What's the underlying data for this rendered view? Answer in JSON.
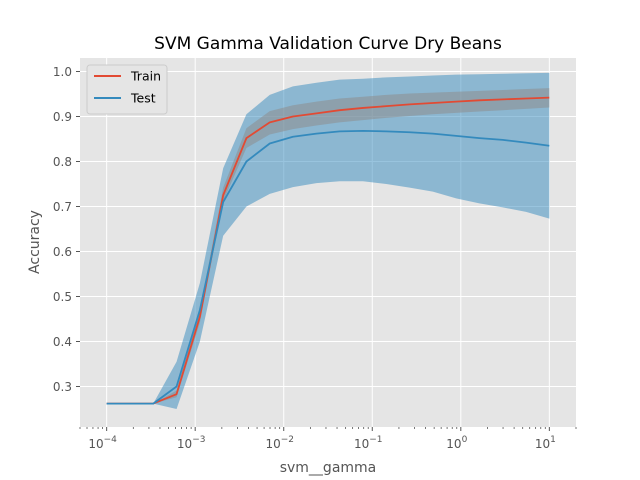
{
  "chart_data": {
    "type": "line",
    "title": "SVM Gamma Validation Curve Dry Beans",
    "xlabel": "svm__gamma",
    "ylabel": "Accuracy",
    "xscale": "log",
    "xlim": [
      5e-05,
      20
    ],
    "ylim": [
      0.21,
      1.03
    ],
    "xticks": [
      {
        "value": 0.0001,
        "base": "10",
        "exp": "−4"
      },
      {
        "value": 0.001,
        "base": "10",
        "exp": "−3"
      },
      {
        "value": 0.01,
        "base": "10",
        "exp": "−2"
      },
      {
        "value": 0.1,
        "base": "10",
        "exp": "−1"
      },
      {
        "value": 1,
        "base": "10",
        "exp": "0"
      },
      {
        "value": 10,
        "base": "10",
        "exp": "1"
      }
    ],
    "yticks": [
      {
        "value": 0.3,
        "label": "0.3"
      },
      {
        "value": 0.4,
        "label": "0.4"
      },
      {
        "value": 0.5,
        "label": "0.5"
      },
      {
        "value": 0.6,
        "label": "0.6"
      },
      {
        "value": 0.7,
        "label": "0.7"
      },
      {
        "value": 0.8,
        "label": "0.8"
      },
      {
        "value": 0.9,
        "label": "0.9"
      },
      {
        "value": 1.0,
        "label": "1.0"
      }
    ],
    "grid": true,
    "legend_position": "top-left",
    "x": [
      0.0001,
      0.000183,
      0.000336,
      0.000616,
      0.00113,
      0.00207,
      0.00379,
      0.00695,
      0.0127,
      0.0234,
      0.0428,
      0.0785,
      0.144,
      0.264,
      0.483,
      0.886,
      1.62,
      2.98,
      5.46,
      10
    ],
    "series": [
      {
        "name": "Train",
        "color": "#E24A33",
        "band_color": "#8E8E8E",
        "values": [
          0.262,
          0.262,
          0.262,
          0.283,
          0.455,
          0.725,
          0.852,
          0.887,
          0.9,
          0.907,
          0.914,
          0.919,
          0.923,
          0.927,
          0.93,
          0.933,
          0.936,
          0.938,
          0.94,
          0.942
        ],
        "lower": [
          0.262,
          0.262,
          0.262,
          0.276,
          0.442,
          0.712,
          0.83,
          0.86,
          0.872,
          0.88,
          0.887,
          0.892,
          0.897,
          0.901,
          0.905,
          0.908,
          0.911,
          0.914,
          0.917,
          0.92
        ],
        "upper": [
          0.262,
          0.262,
          0.262,
          0.291,
          0.47,
          0.742,
          0.874,
          0.912,
          0.925,
          0.933,
          0.94,
          0.944,
          0.948,
          0.951,
          0.953,
          0.955,
          0.957,
          0.959,
          0.961,
          0.963
        ]
      },
      {
        "name": "Test",
        "color": "#348ABD",
        "band_color": "#348ABD",
        "values": [
          0.262,
          0.262,
          0.262,
          0.3,
          0.47,
          0.71,
          0.8,
          0.84,
          0.855,
          0.862,
          0.867,
          0.868,
          0.867,
          0.865,
          0.862,
          0.857,
          0.852,
          0.848,
          0.842,
          0.835
        ],
        "lower": [
          0.262,
          0.262,
          0.262,
          0.25,
          0.4,
          0.635,
          0.7,
          0.728,
          0.743,
          0.752,
          0.756,
          0.756,
          0.75,
          0.742,
          0.733,
          0.718,
          0.707,
          0.698,
          0.688,
          0.673
        ],
        "upper": [
          0.262,
          0.262,
          0.262,
          0.355,
          0.53,
          0.785,
          0.905,
          0.948,
          0.967,
          0.975,
          0.982,
          0.984,
          0.987,
          0.989,
          0.991,
          0.993,
          0.994,
          0.995,
          0.996,
          0.997
        ]
      }
    ]
  }
}
